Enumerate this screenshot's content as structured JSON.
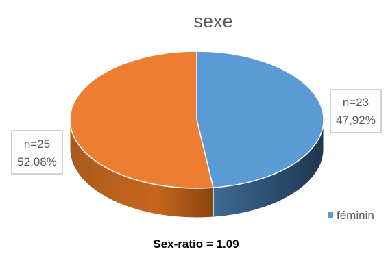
{
  "chart_data": {
    "type": "pie",
    "style": "3d",
    "title": "sexe",
    "slices": [
      {
        "name": "féminin",
        "count": "n=23",
        "percent": "47,92%",
        "value": 47.92,
        "color": "#5B9BD5",
        "side_color": "#2F4E6D"
      },
      {
        "name": "",
        "count": "n=25",
        "percent": "52,08%",
        "value": 52.08,
        "color": "#ED7D31",
        "side_color": "#9C4A14"
      }
    ],
    "legend": {
      "placement": "bottom-right",
      "entries": [
        "féminin"
      ]
    },
    "footnote": "Sex-ratio = 1.09"
  }
}
